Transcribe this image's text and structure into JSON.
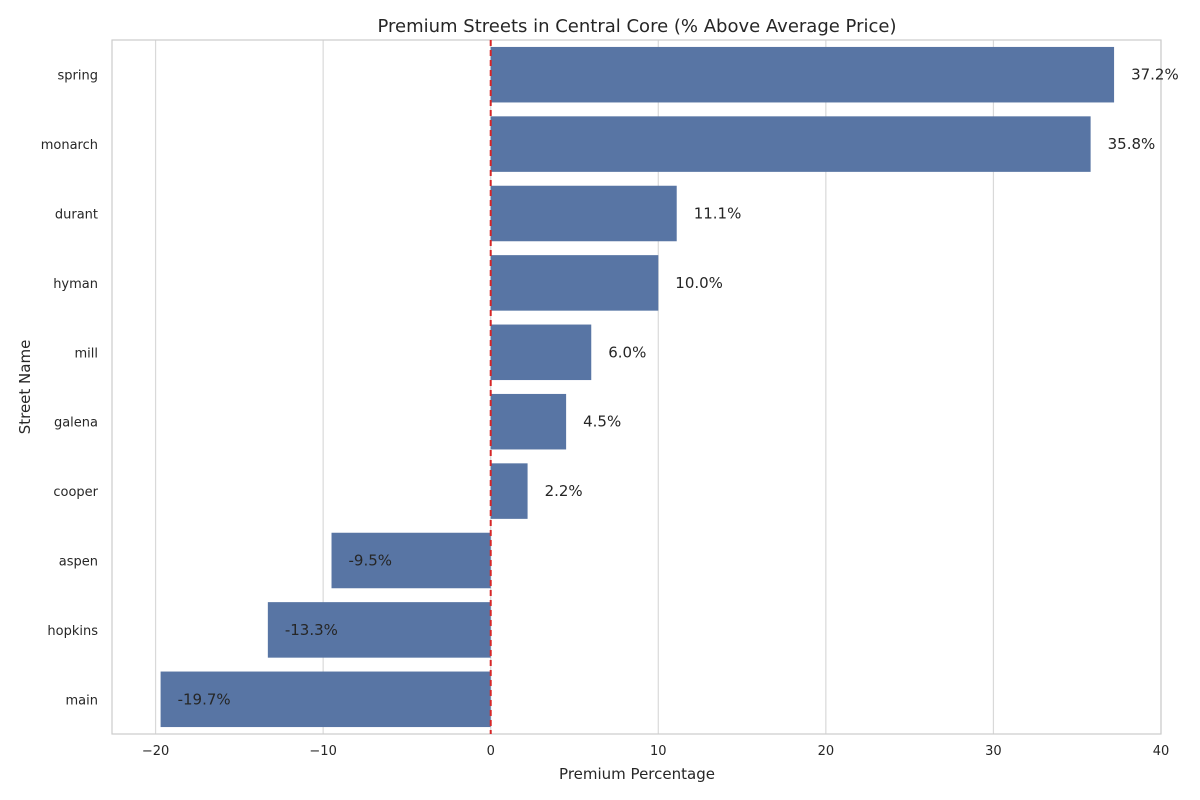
{
  "chart_data": {
    "type": "bar",
    "orientation": "horizontal",
    "title": "Premium Streets in Central Core (% Above Average Price)",
    "xlabel": "Premium Percentage",
    "ylabel": "Street Name",
    "categories": [
      "spring",
      "monarch",
      "durant",
      "hyman",
      "mill",
      "galena",
      "cooper",
      "aspen",
      "hopkins",
      "main"
    ],
    "values": [
      37.2,
      35.8,
      11.1,
      10.0,
      6.0,
      4.5,
      2.2,
      -9.5,
      -13.3,
      -19.7
    ],
    "data_labels": [
      "37.2%",
      "35.8%",
      "11.1%",
      "10.0%",
      "6.0%",
      "4.5%",
      "2.2%",
      "-9.5%",
      "-13.3%",
      "-19.7%"
    ],
    "xlim": [
      -22.6,
      40
    ],
    "xticks": [
      -20,
      -10,
      0,
      10,
      20,
      30,
      40
    ],
    "xtick_labels": [
      "−20",
      "−10",
      "0",
      "10",
      "20",
      "30",
      "40"
    ],
    "reference_line": {
      "x": 0,
      "style": "dashed",
      "color": "#d62728"
    },
    "bar_color": "#5875a4",
    "grid": "vertical",
    "grid_color": "#d9d9d9"
  }
}
